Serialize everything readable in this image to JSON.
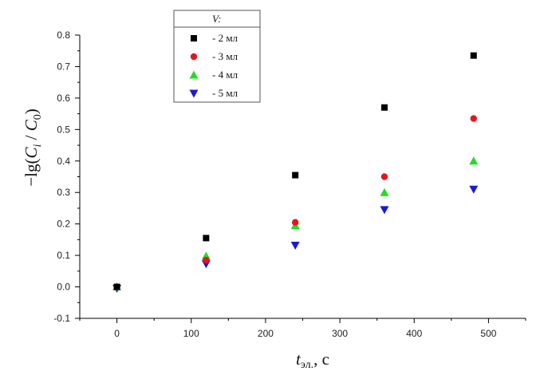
{
  "chart_data": {
    "type": "scatter",
    "title": "",
    "xlabel": {
      "var": "t",
      "sub": "эл.",
      "unit": ", с"
    },
    "ylabel": {
      "prefix": "−lg(",
      "num_var": "C",
      "num_sub": "i",
      "sep": " / ",
      "den_var": "C",
      "den_sub": "0",
      "suffix": ")"
    },
    "xlim": [
      -50,
      550
    ],
    "ylim": [
      -0.1,
      0.8
    ],
    "x_ticks": [
      0,
      100,
      200,
      300,
      400,
      500
    ],
    "y_ticks": [
      -0.1,
      0.0,
      0.1,
      0.2,
      0.3,
      0.4,
      0.5,
      0.6,
      0.7,
      0.8
    ],
    "y_tick_labels": [
      "-0.1",
      "0.0",
      "0.1",
      "0.2",
      "0.3",
      "0.4",
      "0.5",
      "0.6",
      "0.7",
      "0.8"
    ],
    "grid": false,
    "legend_title": "V:",
    "legend_position": "top-left",
    "x": [
      0,
      120,
      240,
      360,
      480
    ],
    "series": [
      {
        "name": "- 2 мл",
        "marker": "square",
        "color": "#000000",
        "values": [
          0.0,
          0.155,
          0.355,
          0.57,
          0.735
        ]
      },
      {
        "name": "- 3 мл",
        "marker": "circle",
        "color": "#e8141c",
        "values": [
          0.0,
          0.085,
          0.205,
          0.35,
          0.535
        ]
      },
      {
        "name": "- 4 мл",
        "marker": "triangle-up",
        "color": "#22dd22",
        "values": [
          0.0,
          0.098,
          0.195,
          0.3,
          0.4
        ]
      },
      {
        "name": "- 5 мл",
        "marker": "triangle-down",
        "color": "#1a1ad4",
        "values": [
          -0.005,
          0.073,
          0.132,
          0.245,
          0.31
        ]
      }
    ]
  }
}
